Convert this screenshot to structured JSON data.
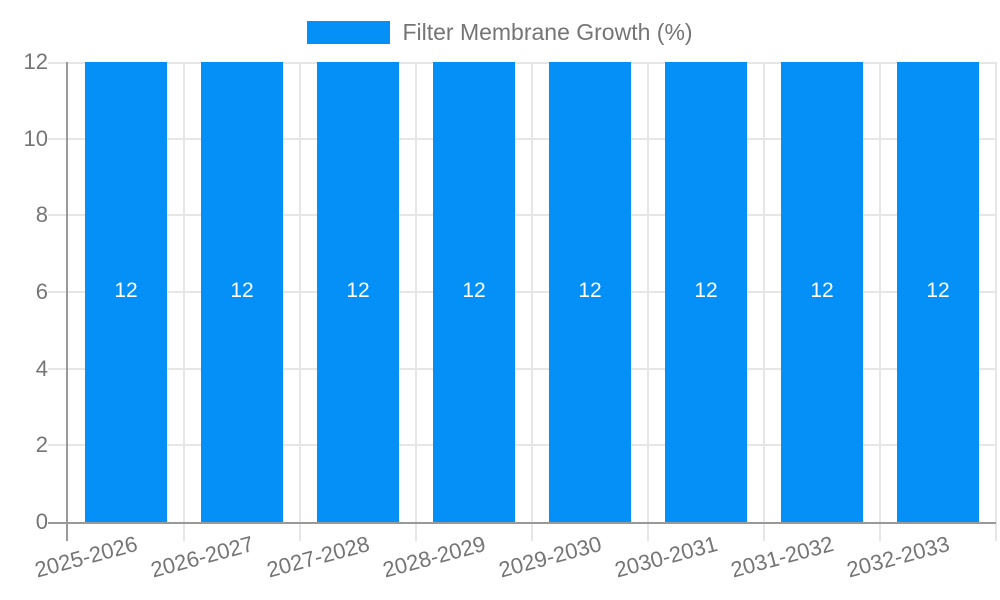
{
  "chart_data": {
    "type": "bar",
    "title": "Filter Membrane Growth (%)",
    "categories": [
      "2025-2026",
      "2026-2027",
      "2027-2028",
      "2028-2029",
      "2029-2030",
      "2030-2031",
      "2031-2032",
      "2032-2033"
    ],
    "values": [
      12,
      12,
      12,
      12,
      12,
      12,
      12,
      12
    ],
    "bar_value_labels": [
      "12",
      "12",
      "12",
      "12",
      "12",
      "12",
      "12",
      "12"
    ],
    "xlabel": "",
    "ylabel": "",
    "ylim": [
      0,
      12
    ],
    "yticks": [
      0,
      2,
      4,
      6,
      8,
      10,
      12
    ],
    "grid": true,
    "legend_position": "top-center",
    "x_label_rotation_deg": -15,
    "colors": {
      "bar": "#0590f8",
      "grid": "#e6e6e6",
      "axis": "#999999",
      "tick_text": "#757575",
      "legend_text": "#757575",
      "bar_label_text": "#ffffff",
      "background": "#ffffff"
    }
  }
}
